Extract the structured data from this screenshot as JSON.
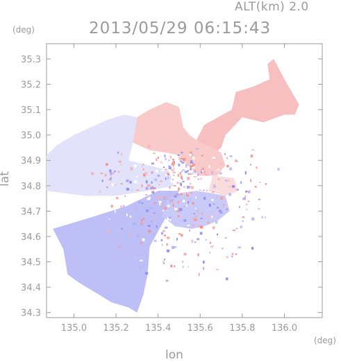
{
  "header": {
    "alt_label": "ALT(km) 2.0",
    "title": "2013/05/29 06:15:43"
  },
  "axes": {
    "y_unit": "(deg)",
    "x_unit": "(deg)",
    "x_label": "lon",
    "y_label": "lat"
  },
  "colors": {
    "positive": "#f08a8a",
    "negative": "#8a8af0",
    "axis": "#9a9a9a",
    "background": "#ffffff"
  },
  "chart_data": {
    "type": "heatmap",
    "title": "2013/05/29 06:15:43",
    "subtitle": "ALT(km) 2.0",
    "xlabel": "lon",
    "ylabel": "lat",
    "x_unit": "(deg)",
    "y_unit": "(deg)",
    "xlim": [
      134.87,
      136.18
    ],
    "ylim": [
      34.28,
      35.36
    ],
    "x_ticks": [
      135.0,
      135.2,
      135.4,
      135.6,
      135.8,
      136.0
    ],
    "x_tick_labels": [
      "135.0",
      "135.2",
      "135.4",
      "135.6",
      "135.8",
      "136.0"
    ],
    "y_ticks": [
      34.3,
      34.4,
      34.5,
      34.6,
      34.7,
      34.8,
      34.9,
      35.0,
      35.1,
      35.2,
      35.3
    ],
    "y_tick_labels": [
      "34.3",
      "34.4",
      "34.5",
      "34.6",
      "34.7",
      "34.8",
      "34.9",
      "35.0",
      "35.1",
      "35.2",
      "35.3"
    ],
    "grid": false,
    "colormap": "blue-white-red diverging",
    "center": {
      "lon": 135.52,
      "lat": 34.83
    },
    "regions": [
      {
        "name": "east-northeast",
        "sign": "positive",
        "intensity": 0.55,
        "polygon": [
          [
            135.55,
            34.93
          ],
          [
            135.62,
            35.04
          ],
          [
            135.75,
            35.1
          ],
          [
            135.77,
            35.17
          ],
          [
            135.85,
            35.19
          ],
          [
            135.93,
            35.22
          ],
          [
            135.92,
            35.28
          ],
          [
            135.95,
            35.3
          ],
          [
            136.0,
            35.22
          ],
          [
            136.07,
            35.12
          ],
          [
            136.05,
            35.08
          ],
          [
            136.0,
            35.08
          ],
          [
            135.9,
            35.05
          ],
          [
            135.8,
            35.07
          ],
          [
            135.72,
            35.0
          ],
          [
            135.7,
            34.95
          ],
          [
            135.63,
            34.9
          ]
        ]
      },
      {
        "name": "north",
        "sign": "positive",
        "intensity": 0.45,
        "polygon": [
          [
            135.3,
            35.07
          ],
          [
            135.36,
            35.1
          ],
          [
            135.44,
            35.13
          ],
          [
            135.5,
            35.11
          ],
          [
            135.52,
            35.03
          ],
          [
            135.55,
            35.0
          ],
          [
            135.6,
            34.97
          ],
          [
            135.66,
            34.95
          ],
          [
            135.7,
            34.93
          ],
          [
            135.72,
            34.88
          ],
          [
            135.68,
            34.84
          ],
          [
            135.6,
            34.84
          ],
          [
            135.54,
            34.88
          ],
          [
            135.5,
            34.92
          ],
          [
            135.44,
            34.93
          ],
          [
            135.36,
            34.94
          ],
          [
            135.28,
            34.97
          ]
        ]
      },
      {
        "name": "northwest",
        "sign": "negative",
        "intensity": 0.25,
        "polygon": [
          [
            134.87,
            34.78
          ],
          [
            134.87,
            34.92
          ],
          [
            134.92,
            34.96
          ],
          [
            135.0,
            35.0
          ],
          [
            135.08,
            35.03
          ],
          [
            135.16,
            35.06
          ],
          [
            135.24,
            35.08
          ],
          [
            135.3,
            35.07
          ],
          [
            135.28,
            34.97
          ],
          [
            135.26,
            34.9
          ],
          [
            135.36,
            34.88
          ],
          [
            135.45,
            34.86
          ],
          [
            135.48,
            34.8
          ],
          [
            135.35,
            34.78
          ],
          [
            135.2,
            34.76
          ],
          [
            135.05,
            34.76
          ]
        ]
      },
      {
        "name": "southwest",
        "sign": "negative",
        "intensity": 0.55,
        "polygon": [
          [
            134.9,
            34.63
          ],
          [
            134.95,
            34.55
          ],
          [
            134.97,
            34.45
          ],
          [
            135.02,
            34.42
          ],
          [
            135.1,
            34.38
          ],
          [
            135.18,
            34.34
          ],
          [
            135.26,
            34.32
          ],
          [
            135.3,
            34.3
          ],
          [
            135.33,
            34.37
          ],
          [
            135.35,
            34.45
          ],
          [
            135.36,
            34.56
          ],
          [
            135.42,
            34.65
          ],
          [
            135.48,
            34.74
          ],
          [
            135.5,
            34.78
          ],
          [
            135.4,
            34.78
          ],
          [
            135.25,
            34.72
          ],
          [
            135.1,
            34.68
          ]
        ]
      },
      {
        "name": "south",
        "sign": "negative",
        "intensity": 0.45,
        "polygon": [
          [
            135.44,
            34.74
          ],
          [
            135.5,
            34.77
          ],
          [
            135.58,
            34.78
          ],
          [
            135.66,
            34.77
          ],
          [
            135.72,
            34.76
          ],
          [
            135.74,
            34.7
          ],
          [
            135.68,
            34.66
          ],
          [
            135.62,
            34.64
          ],
          [
            135.56,
            34.63
          ],
          [
            135.48,
            34.64
          ],
          [
            135.42,
            34.68
          ]
        ]
      },
      {
        "name": "east",
        "sign": "positive",
        "intensity": 0.3,
        "polygon": [
          [
            135.66,
            34.84
          ],
          [
            135.76,
            34.83
          ],
          [
            135.78,
            34.78
          ],
          [
            135.72,
            34.76
          ],
          [
            135.64,
            34.78
          ]
        ]
      }
    ]
  },
  "noise_seed": 7
}
